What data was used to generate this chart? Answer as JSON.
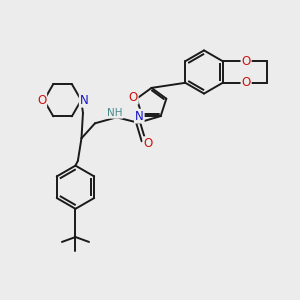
{
  "bg_color": "#ececec",
  "atom_colors": {
    "C": "#1a1a1a",
    "N": "#1414cc",
    "O": "#cc1414",
    "H": "#4a8a8a"
  },
  "bond_color": "#1a1a1a",
  "bond_width": 1.4,
  "fig_size": [
    3.0,
    3.0
  ],
  "dpi": 100
}
